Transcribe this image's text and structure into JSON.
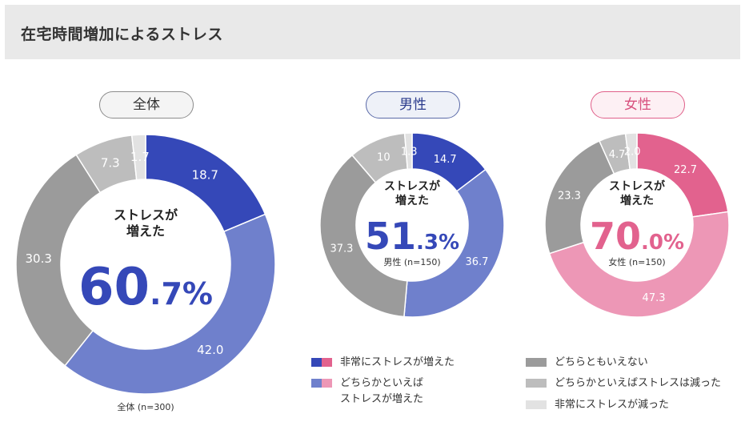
{
  "header": {
    "title": "在宅時間増加によるストレス"
  },
  "legend": {
    "items": [
      {
        "label_lines": [
          "非常にストレスが増えた"
        ],
        "colors": [
          "#3548b8",
          "#e2628e"
        ]
      },
      {
        "label_lines": [
          "どちらかといえば",
          "ストレスが増えた"
        ],
        "colors": [
          "#6f80cc",
          "#ed97b6"
        ]
      },
      {
        "label_lines": [
          "どちらともいえない"
        ],
        "colors": [
          "#9b9b9b"
        ]
      },
      {
        "label_lines": [
          "どちらかといえばストレスは減った"
        ],
        "colors": [
          "#bdbdbd"
        ]
      },
      {
        "label_lines": [
          "非常にストレスが減った"
        ],
        "colors": [
          "#e2e2e2"
        ]
      }
    ]
  },
  "chart_data": [
    {
      "type": "pie",
      "group": "全体",
      "categories": [
        "非常にストレスが増えた",
        "どちらかといえばストレスが増えた",
        "どちらともいえない",
        "どちらかといえばストレスは減った",
        "非常にストレスが減った"
      ],
      "values": [
        18.7,
        42.0,
        30.3,
        7.3,
        1.7
      ],
      "value_labels": [
        "18.7",
        "42.0",
        "30.3",
        "7.3",
        "1.7"
      ],
      "colors": [
        "#3548b8",
        "#6f80cc",
        "#9b9b9b",
        "#bdbdbd",
        "#e2e2e2"
      ],
      "center_heading": [
        "ストレスが",
        "増えた"
      ],
      "center_value_int": "60",
      "center_value_dec": ".7%",
      "center_color": "#3548b8",
      "sample": "全体 (n=300)"
    },
    {
      "type": "pie",
      "group": "男性",
      "categories": [
        "非常にストレスが増えた",
        "どちらかといえばストレスが増えた",
        "どちらともいえない",
        "どちらかといえばストレスは減った",
        "非常にストレスが減った"
      ],
      "values": [
        14.7,
        36.7,
        37.3,
        10.0,
        1.3
      ],
      "value_labels": [
        "14.7",
        "36.7",
        "37.3",
        "10",
        "1.3"
      ],
      "colors": [
        "#3548b8",
        "#6f80cc",
        "#9b9b9b",
        "#bdbdbd",
        "#e2e2e2"
      ],
      "center_heading": [
        "ストレスが",
        "増えた"
      ],
      "center_value_int": "51",
      "center_value_dec": ".3%",
      "center_color": "#3548b8",
      "sample": "男性 (n=150)"
    },
    {
      "type": "pie",
      "group": "女性",
      "categories": [
        "非常にストレスが増えた",
        "どちらかといえばストレスが増えた",
        "どちらともいえない",
        "どちらかといえばストレスは減った",
        "非常にストレスが減った"
      ],
      "values": [
        22.7,
        47.3,
        23.3,
        4.7,
        2.0
      ],
      "value_labels": [
        "22.7",
        "47.3",
        "23.3",
        "4.7",
        "2.0"
      ],
      "colors": [
        "#e2628e",
        "#ed97b6",
        "#9b9b9b",
        "#bdbdbd",
        "#e2e2e2"
      ],
      "center_heading": [
        "ストレスが",
        "増えた"
      ],
      "center_value_int": "70",
      "center_value_dec": ".0%",
      "center_color": "#e2628e",
      "sample": "女性 (n=150)"
    }
  ]
}
